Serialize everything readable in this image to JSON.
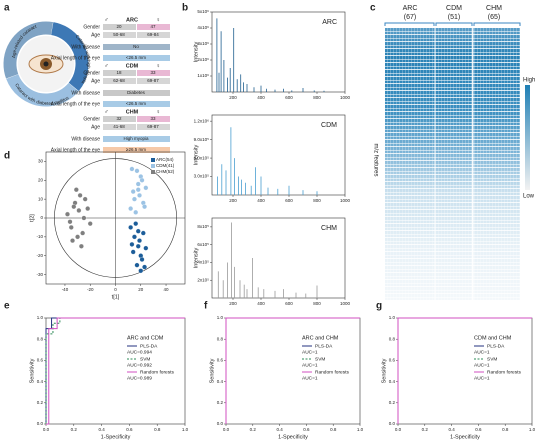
{
  "panel_labels": [
    "a",
    "b",
    "c",
    "d",
    "e",
    "f",
    "g"
  ],
  "panel_a": {
    "ring_labels": [
      "Age-related cataract",
      "Cataract with high myopia",
      "Cataract with diabetes mellitus"
    ],
    "gender_symbols": [
      "♂",
      "♀"
    ],
    "groups": [
      {
        "name": "ARC",
        "gender_label": "Gender",
        "gender": [
          "20",
          "47"
        ],
        "age_label": "Age",
        "age": [
          "50-68",
          "69-84"
        ],
        "disease_label": "With disease",
        "disease": "No",
        "axial_label": "Axial length of the eye",
        "axial": "<26.5 mm"
      },
      {
        "name": "CDM",
        "gender_label": "Gender",
        "gender": [
          "18",
          "33"
        ],
        "age_label": "Age",
        "age": [
          "62-68",
          "69-87"
        ],
        "disease_label": "With disease",
        "disease": "Diabetes",
        "axial_label": "Axial length of the eye",
        "axial": "<26.5 mm"
      },
      {
        "name": "CHM",
        "gender_label": "Gender",
        "gender": [
          "32",
          "33"
        ],
        "age_label": "Age",
        "age": [
          "41-68",
          "69-87"
        ],
        "disease_label": "With disease",
        "disease": "High myopia",
        "axial_label": "Axial length of the eye",
        "axial": "≥26.5 mm"
      }
    ]
  },
  "panel_c": {
    "groups": [
      {
        "name": "ARC",
        "n": "(67)"
      },
      {
        "name": "CDM",
        "n": "(51)"
      },
      {
        "name": "CHM",
        "n": "(65)"
      }
    ],
    "ylabel": "m/z features",
    "legend_high": "High",
    "legend_low": "Low"
  },
  "chart_data": [
    {
      "type": "stem",
      "title": "ARC",
      "ylabel": "Intensity",
      "color": "#1f5f8f",
      "xlim": [
        50,
        1000
      ],
      "xticks": [
        200,
        400,
        600,
        800,
        1000
      ],
      "ylim": [
        0,
        5000000
      ],
      "yticks": [
        {
          "value": 1000000,
          "label": "1x10⁶"
        },
        {
          "value": 2000000,
          "label": "2x10⁶"
        },
        {
          "value": 3000000,
          "label": "3x10⁶"
        },
        {
          "value": 4000000,
          "label": "4x10⁶"
        },
        {
          "value": 5000000,
          "label": "5x10⁶"
        }
      ],
      "x": [
        85,
        100,
        115,
        135,
        160,
        180,
        205,
        230,
        255,
        275,
        300,
        350,
        400,
        440,
        500,
        560,
        620,
        700,
        780,
        850
      ],
      "values": [
        4600000,
        1200000,
        3800000,
        2000000,
        900000,
        1500000,
        4000000,
        800000,
        1100000,
        600000,
        500000,
        300000,
        400000,
        200000,
        150000,
        200000,
        100000,
        250000,
        100000,
        80000
      ]
    },
    {
      "type": "stem",
      "title": "CDM",
      "ylabel": "Intensity",
      "color": "#4a9fd0",
      "xlim": [
        50,
        1000
      ],
      "xticks": [
        200,
        400,
        600,
        800,
        1000
      ],
      "ylim": [
        0,
        1300000
      ],
      "yticks": [
        {
          "value": 300000,
          "label": "3.0x10⁵"
        },
        {
          "value": 600000,
          "label": "6.0x10⁵"
        },
        {
          "value": 900000,
          "label": "9.0x10⁵"
        },
        {
          "value": 1200000,
          "label": "1.2x10⁶"
        }
      ],
      "x": [
        90,
        120,
        150,
        185,
        210,
        240,
        260,
        290,
        330,
        360,
        400,
        450,
        520,
        600,
        700,
        800
      ],
      "values": [
        300000,
        500000,
        400000,
        1100000,
        600000,
        300000,
        250000,
        200000,
        150000,
        450000,
        300000,
        120000,
        100000,
        150000,
        80000,
        60000
      ]
    },
    {
      "type": "stem",
      "title": "CHM",
      "ylabel": "Intensity",
      "color": "#9a9a9a",
      "xlim": [
        50,
        1000
      ],
      "xticks": [
        200,
        400,
        600,
        800,
        1000
      ],
      "ylim": [
        0,
        900000
      ],
      "yticks": [
        {
          "value": 200000,
          "label": "2x10⁵"
        },
        {
          "value": 400000,
          "label": "4x10⁵"
        },
        {
          "value": 600000,
          "label": "6x10⁵"
        },
        {
          "value": 800000,
          "label": "8x10⁵"
        }
      ],
      "x": [
        95,
        130,
        160,
        190,
        210,
        250,
        280,
        300,
        340,
        380,
        420,
        500,
        560,
        650,
        720,
        800
      ],
      "values": [
        300000,
        200000,
        400000,
        850000,
        350000,
        200000,
        150000,
        100000,
        450000,
        120000,
        100000,
        80000,
        100000,
        60000,
        50000,
        140000
      ]
    },
    {
      "type": "scatter",
      "xlabel": "t[1]",
      "ylabel": "t[2]",
      "xlim": [
        -55,
        55
      ],
      "xticks": [
        -40,
        -20,
        0,
        20,
        40
      ],
      "ylim": [
        -35,
        35
      ],
      "yticks": [
        -30,
        -20,
        -10,
        0,
        10,
        20,
        30
      ],
      "series": [
        {
          "name": "ARC(54)",
          "color": "#1c5d99",
          "x": [
            12,
            15,
            18,
            20,
            22,
            14,
            17,
            19,
            24,
            16,
            21,
            13,
            18,
            23,
            20
          ],
          "values": [
            -5,
            -10,
            -15,
            -20,
            -8,
            -18,
            -25,
            -12,
            -16,
            -3,
            -22,
            -14,
            -7,
            -26,
            -28
          ]
        },
        {
          "name": "CDM(41)",
          "color": "#9cc3e4",
          "x": [
            12,
            15,
            18,
            20,
            22,
            14,
            17,
            19,
            24,
            16,
            21,
            13,
            18,
            23
          ],
          "values": [
            5,
            10,
            18,
            22,
            8,
            14,
            25,
            12,
            16,
            3,
            20,
            26,
            15,
            6
          ]
        },
        {
          "name": "CHM(52)",
          "color": "#7f7f7f",
          "x": [
            -38,
            -35,
            -32,
            -30,
            -28,
            -25,
            -22,
            -20,
            -34,
            -29,
            -26,
            -31,
            -24,
            -36,
            -27,
            -33
          ],
          "values": [
            2,
            -5,
            8,
            -10,
            12,
            0,
            5,
            -3,
            -12,
            4,
            -8,
            15,
            10,
            -2,
            -15,
            6
          ]
        }
      ]
    },
    {
      "type": "roc",
      "title": "ARC and CDM",
      "xlabel": "1-Specificity",
      "ylabel": "Sensitivity",
      "xlim": [
        0,
        1
      ],
      "ylim": [
        0,
        1
      ],
      "xticks": [
        {
          "value": 0,
          "label": "0.0"
        },
        0.2,
        0.4,
        0.6,
        0.8,
        {
          "value": 1,
          "label": "1.0"
        }
      ],
      "yticks": [
        {
          "value": 0,
          "label": "0.0"
        },
        0.2,
        0.4,
        0.6,
        0.8,
        {
          "value": 1,
          "label": "1.0"
        }
      ],
      "series": [
        {
          "name": "PLS-DA",
          "auc": "AUC=0.994",
          "color": "#23307f",
          "dash": false,
          "x": [
            0,
            0,
            0.04,
            0.04,
            1
          ],
          "values": [
            0,
            0.9,
            0.9,
            1,
            1
          ]
        },
        {
          "name": "SVM",
          "auc": "AUC=0.992",
          "color": "#2e8b57",
          "dash": true,
          "x": [
            0,
            0,
            0.05,
            0.05,
            0.1,
            0.1,
            1
          ],
          "values": [
            0,
            0.85,
            0.85,
            0.95,
            0.95,
            1,
            1
          ]
        },
        {
          "name": "Random forests",
          "auc": "AUC=0.989",
          "color": "#d04fc0",
          "dash": false,
          "x": [
            0,
            0.02,
            0.02,
            0.08,
            0.08,
            1
          ],
          "values": [
            0,
            0,
            0.9,
            0.9,
            1,
            1
          ]
        }
      ]
    },
    {
      "type": "roc",
      "title": "ARC and CHM",
      "xlabel": "1-Specificity",
      "ylabel": "Sensitivity",
      "xlim": [
        0,
        1
      ],
      "ylim": [
        0,
        1
      ],
      "xticks": [
        {
          "value": 0,
          "label": "0.0"
        },
        0.2,
        0.4,
        0.6,
        0.8,
        {
          "value": 1,
          "label": "1.0"
        }
      ],
      "yticks": [
        {
          "value": 0,
          "label": "0.0"
        },
        0.2,
        0.4,
        0.6,
        0.8,
        {
          "value": 1,
          "label": "1.0"
        }
      ],
      "series": [
        {
          "name": "PLS-DA",
          "auc": "AUC=1",
          "color": "#23307f",
          "dash": false,
          "x": [
            0,
            0,
            1
          ],
          "values": [
            0,
            1,
            1
          ]
        },
        {
          "name": "SVM",
          "auc": "AUC=1",
          "color": "#2e8b57",
          "dash": true,
          "x": [
            0,
            0,
            1
          ],
          "values": [
            0,
            1,
            1
          ]
        },
        {
          "name": "Random forests",
          "auc": "AUC=1",
          "color": "#d04fc0",
          "dash": false,
          "x": [
            0,
            0,
            1
          ],
          "values": [
            0,
            1,
            1
          ]
        }
      ]
    },
    {
      "type": "roc",
      "title": "CDM and CHM",
      "xlabel": "1-Specificity",
      "ylabel": "Sensitivity",
      "xlim": [
        0,
        1
      ],
      "ylim": [
        0,
        1
      ],
      "xticks": [
        {
          "value": 0,
          "label": "0.0"
        },
        0.2,
        0.4,
        0.6,
        0.8,
        {
          "value": 1,
          "label": "1.0"
        }
      ],
      "yticks": [
        {
          "value": 0,
          "label": "0.0"
        },
        0.2,
        0.4,
        0.6,
        0.8,
        {
          "value": 1,
          "label": "1.0"
        }
      ],
      "series": [
        {
          "name": "PLS-DA",
          "auc": "AUC=1",
          "color": "#23307f",
          "dash": false,
          "x": [
            0,
            0,
            1
          ],
          "values": [
            0,
            1,
            1
          ]
        },
        {
          "name": "SVM",
          "auc": "AUC=1",
          "color": "#2e8b57",
          "dash": true,
          "x": [
            0,
            0,
            1
          ],
          "values": [
            0,
            1,
            1
          ]
        },
        {
          "name": "Random forests",
          "auc": "AUC=1",
          "color": "#d04fc0",
          "dash": false,
          "x": [
            0,
            0,
            1
          ],
          "values": [
            0,
            1,
            1
          ]
        }
      ]
    }
  ]
}
